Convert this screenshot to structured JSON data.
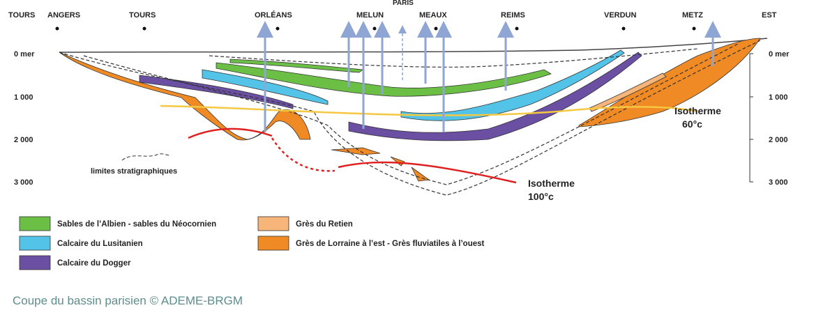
{
  "header": {
    "left_label": "TOURS",
    "right_label": "EST",
    "paris": "PARIS"
  },
  "cities": [
    "ANGERS",
    "TOURS",
    "ORLÉANS",
    "MELUN",
    "MEAUX",
    "REIMS",
    "VERDUN",
    "METZ"
  ],
  "depth_labels": [
    "0 mer",
    "1 000",
    "2 000",
    "3 000"
  ],
  "annotations": {
    "limits": "limites stratigraphiques",
    "isotherm_60": [
      "Isotherme",
      "60°c"
    ],
    "isotherm_100": [
      "Isotherme",
      "100°c"
    ]
  },
  "legend": [
    "Sables de l’Albien - sables du Néocornien",
    "Calcaire du Lusitanien",
    "Calcaire du Dogger",
    "Grès du Retien",
    "Grès de Lorraine à l’est - Grès fluviatiles à l’ouest"
  ],
  "caption": "Coupe du bassin parisien © ADEME-BRGM"
}
